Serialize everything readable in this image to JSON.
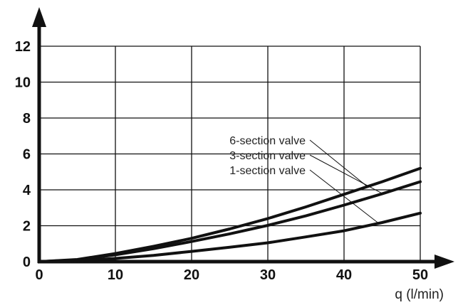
{
  "chart_data": {
    "type": "line",
    "title": "",
    "xlabel": "q (l/min)",
    "ylabel": "",
    "xlim": [
      0,
      50
    ],
    "ylim": [
      0,
      12
    ],
    "x_ticks": [
      0,
      10,
      20,
      30,
      40,
      50
    ],
    "y_ticks": [
      0,
      2,
      4,
      6,
      8,
      10,
      12
    ],
    "grid": true,
    "x": [
      0,
      5,
      10,
      15,
      20,
      25,
      30,
      35,
      40,
      45,
      50
    ],
    "series": [
      {
        "name": "6-section valve",
        "values": [
          0.0,
          0.12,
          0.45,
          0.85,
          1.3,
          1.82,
          2.4,
          3.05,
          3.75,
          4.45,
          5.2
        ],
        "leader_to": [
          43,
          4.2
        ]
      },
      {
        "name": "3-section valve",
        "values": [
          0.0,
          0.1,
          0.38,
          0.72,
          1.12,
          1.55,
          2.02,
          2.55,
          3.15,
          3.78,
          4.45
        ],
        "leader_to": [
          45,
          3.8
        ]
      },
      {
        "name": "1-section valve",
        "values": [
          0.0,
          0.05,
          0.18,
          0.35,
          0.57,
          0.8,
          1.05,
          1.38,
          1.72,
          2.18,
          2.7
        ],
        "leader_to": [
          44.5,
          2.15
        ]
      }
    ]
  },
  "colors": {
    "axis": "#111111",
    "grid": "#111111",
    "curve": "#111111",
    "background": "#ffffff"
  }
}
